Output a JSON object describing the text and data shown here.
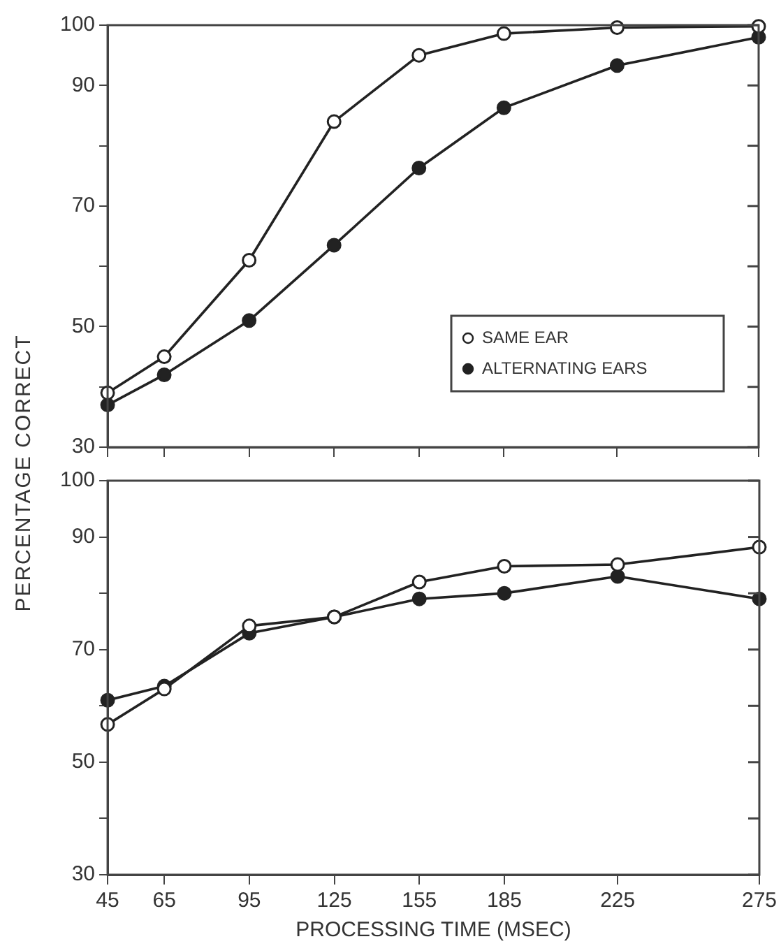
{
  "chart_data": [
    {
      "type": "line",
      "ylabel": "PERCENTAGE CORRECT",
      "x": [
        45,
        65,
        95,
        125,
        155,
        185,
        225,
        275
      ],
      "series": [
        {
          "name": "SAME EAR",
          "color": "#222222",
          "marker": "circle",
          "values": [
            39,
            45,
            61,
            84,
            95,
            98.6,
            99.6,
            99.8
          ]
        },
        {
          "name": "ALTERNATING EARS",
          "color": "#222222",
          "marker": "circle",
          "values": [
            37,
            42,
            51,
            63.5,
            76.3,
            86.3,
            93.3,
            98
          ]
        }
      ],
      "xlim": [
        45,
        275
      ],
      "xticks": [
        45,
        65,
        95,
        125,
        155,
        185,
        225,
        275
      ],
      "ylim": [
        30,
        100
      ],
      "yticks": [
        30,
        {
          "value": 40,
          "label": null
        },
        50,
        {
          "value": 60,
          "label": null
        },
        70,
        {
          "value": 80,
          "label": null
        },
        90,
        100
      ],
      "grid": false,
      "legend": "bottom right",
      "tick_labels": "y",
      "line_style": "solid"
    },
    {
      "type": "line",
      "xlabel": "PROCESSING TIME (MSEC)",
      "x": [
        45,
        65,
        95,
        125,
        155,
        185,
        225,
        275
      ],
      "series": [
        {
          "color": "#222222",
          "marker": "circle",
          "values": [
            56.7,
            63,
            74.2,
            75.8,
            82,
            84.8,
            85.1,
            88.2
          ]
        },
        {
          "color": "#222222",
          "marker": "circle",
          "values": [
            61,
            63.5,
            72.9,
            75.8,
            79,
            80,
            83,
            79
          ]
        }
      ],
      "xlim": [
        45,
        275
      ],
      "xticks": [
        45,
        65,
        95,
        125,
        155,
        185,
        225,
        275
      ],
      "ylim": [
        30,
        100
      ],
      "yticks": [
        30,
        {
          "value": 40,
          "label": null
        },
        50,
        {
          "value": 60,
          "label": null
        },
        70,
        {
          "value": 80,
          "label": null
        },
        90,
        100
      ],
      "grid": false,
      "legend": false,
      "line_style": "solid"
    }
  ]
}
